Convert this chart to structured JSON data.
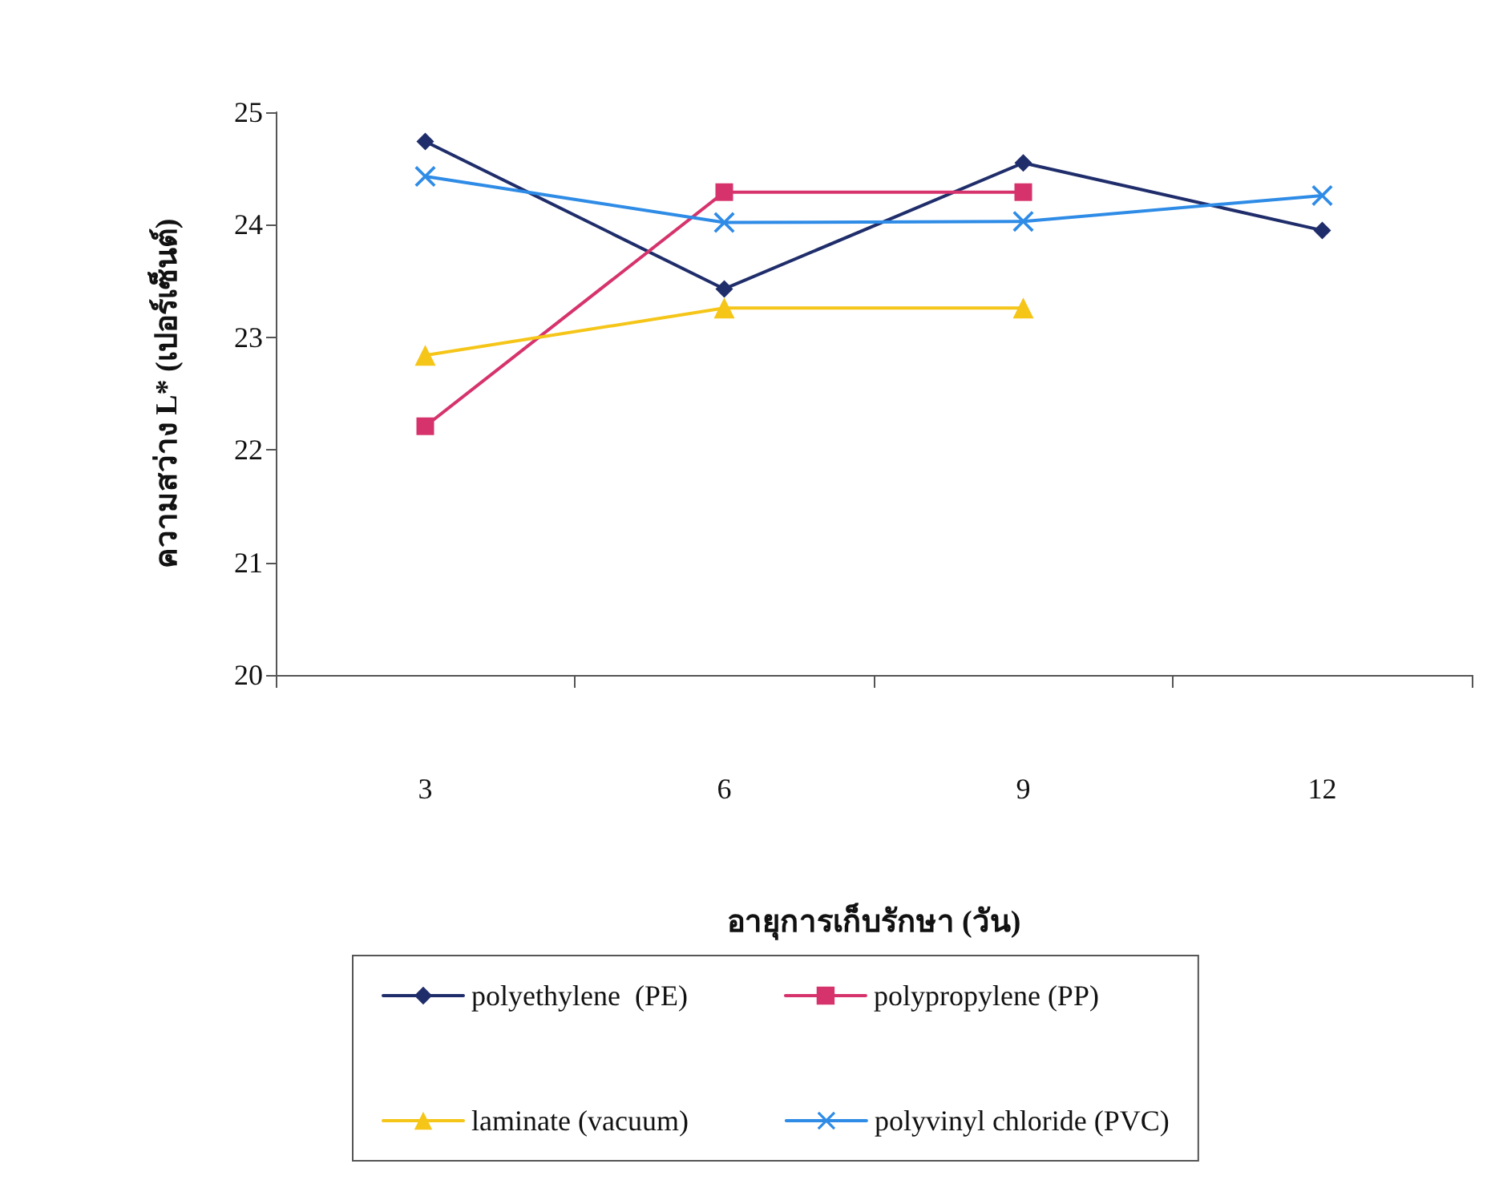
{
  "chart_data": {
    "type": "line",
    "xlabel": "อายุการเก็บรักษา (วัน)",
    "ylabel": "ความสว่าง L* (เปอร์เซ็นต์)",
    "categories": [
      "3",
      "6",
      "9",
      "12"
    ],
    "series": [
      {
        "name": "polyethylene  (PE)",
        "color": "#1f2d6b",
        "marker": "diamond",
        "values": [
          24.74,
          23.43,
          24.55,
          23.95
        ]
      },
      {
        "name": "polypropylene (PP)",
        "color": "#d6336c",
        "marker": "square",
        "values": [
          22.21,
          24.29,
          24.29,
          null
        ]
      },
      {
        "name": "laminate (vacuum)",
        "color": "#f5c518",
        "marker": "triangle",
        "values": [
          22.84,
          23.26,
          23.26,
          null
        ]
      },
      {
        "name": "polyvinyl chloride (PVC)",
        "color": "#2e8be6",
        "marker": "cross",
        "values": [
          24.43,
          24.02,
          24.03,
          24.26
        ]
      }
    ],
    "ylim": [
      20,
      25
    ],
    "yticks": [
      20,
      21,
      22,
      23,
      24,
      25
    ],
    "grid": false,
    "legend": "bottom",
    "line_style": "solid"
  }
}
